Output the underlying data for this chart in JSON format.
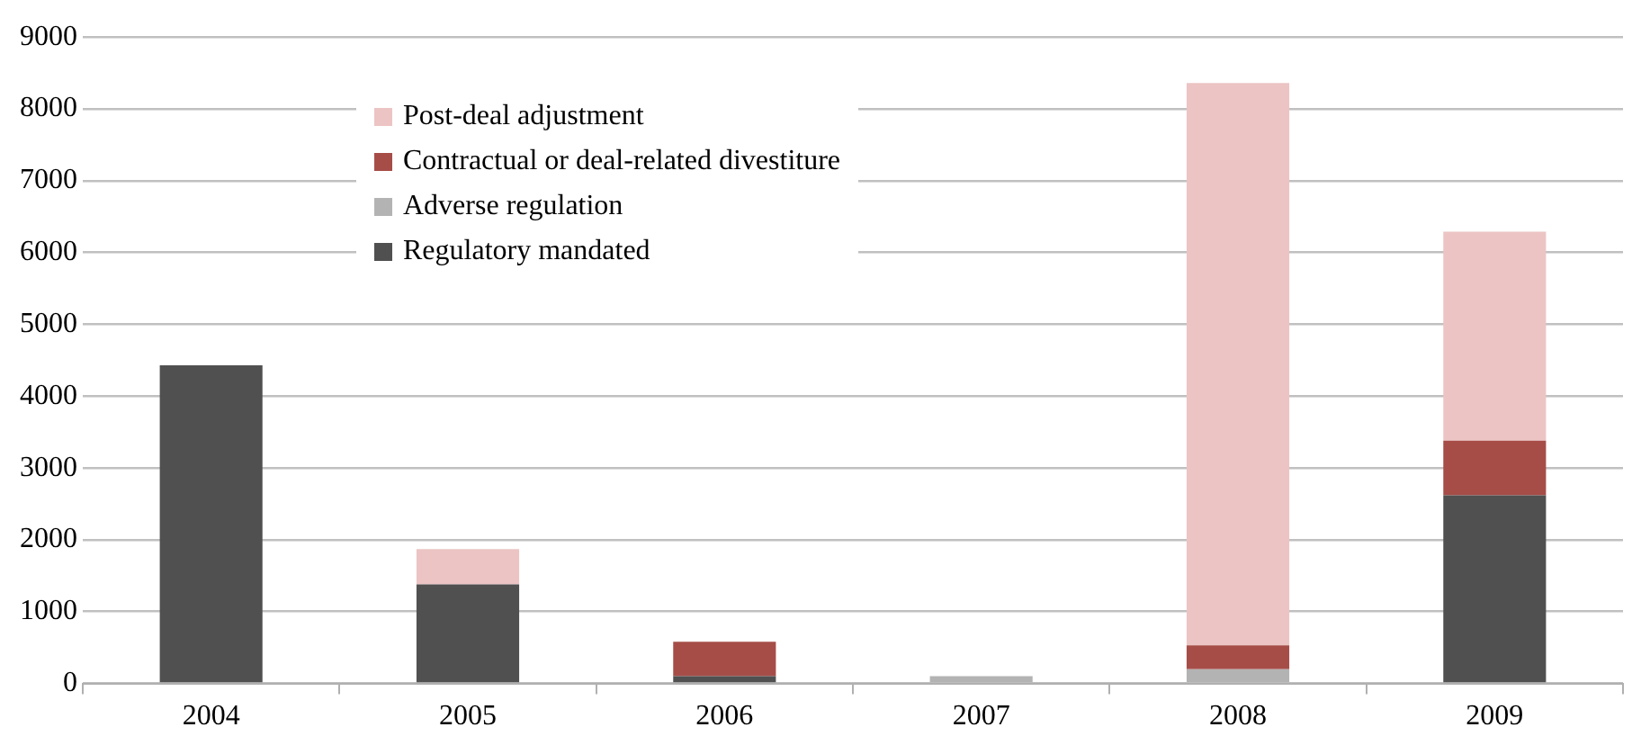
{
  "chart_data": {
    "type": "bar",
    "stacked": true,
    "categories": [
      "2004",
      "2005",
      "2006",
      "2007",
      "2008",
      "2009"
    ],
    "series": [
      {
        "name": "Regulatory mandated",
        "color": "#505050",
        "values": [
          4430,
          1380,
          100,
          0,
          0,
          2620
        ]
      },
      {
        "name": "Adverse regulation",
        "color": "#b3b3b3",
        "values": [
          0,
          0,
          0,
          100,
          200,
          0
        ]
      },
      {
        "name": "Contractual or deal-related divestiture",
        "color": "#a64d48",
        "values": [
          0,
          0,
          480,
          0,
          330,
          760
        ]
      },
      {
        "name": "Post-deal adjustment",
        "color": "#ecc4c4",
        "values": [
          0,
          490,
          0,
          0,
          7830,
          2910
        ]
      }
    ],
    "ylim": [
      0,
      9000
    ],
    "yticks": [
      0,
      1000,
      2000,
      3000,
      4000,
      5000,
      6000,
      7000,
      8000,
      9000
    ],
    "grid": "y",
    "legend": "top left"
  }
}
